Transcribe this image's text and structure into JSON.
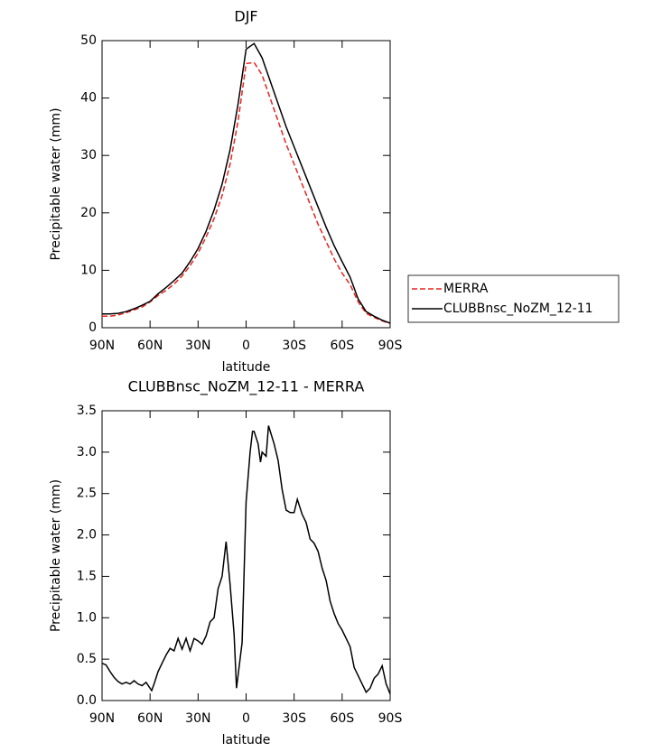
{
  "chart_data": [
    {
      "type": "line",
      "title": "DJF",
      "x_label": "latitude",
      "y_label": "Precipitable water (mm)",
      "x": [
        90,
        85,
        80,
        75,
        70,
        65,
        60,
        55,
        50,
        45,
        40,
        35,
        30,
        25,
        20,
        15,
        10,
        5,
        0,
        -5,
        -10,
        -15,
        -20,
        -25,
        -30,
        -35,
        -40,
        -45,
        -50,
        -55,
        -60,
        -65,
        -70,
        -75,
        -80,
        -85,
        -90
      ],
      "series": [
        {
          "name": "MERRA",
          "color": "#e8231e",
          "dashed": true,
          "values": [
            2.0,
            2.0,
            2.2,
            2.6,
            3.1,
            3.6,
            4.5,
            5.6,
            6.5,
            7.6,
            9.0,
            10.8,
            13.0,
            15.8,
            19.0,
            23.0,
            28.5,
            36,
            46,
            46.2,
            44,
            40,
            36,
            32,
            28.5,
            25,
            21.5,
            18,
            15,
            12,
            9.5,
            7.5,
            4.5,
            2.5,
            1.8,
            1.2,
            0.7
          ]
        },
        {
          "name": "CLUBBnsc_NoZM_12-11",
          "color": "#000000",
          "dashed": false,
          "values": [
            2.4,
            2.4,
            2.5,
            2.8,
            3.3,
            3.9,
            4.6,
            5.9,
            7.0,
            8.2,
            9.5,
            11.5,
            13.8,
            16.8,
            20.5,
            25,
            31,
            39,
            48.5,
            49.5,
            47,
            43,
            39,
            35,
            31.5,
            28,
            24.5,
            21,
            17.5,
            14.3,
            11.5,
            8.8,
            5,
            2.8,
            2.0,
            1.3,
            0.8
          ]
        }
      ],
      "xlim": [
        90,
        -90
      ],
      "xticks": [
        {
          "value": 90,
          "label": "90N"
        },
        {
          "value": 60,
          "label": "60N"
        },
        {
          "value": 30,
          "label": "30N"
        },
        0,
        {
          "value": -30,
          "label": "30S"
        },
        {
          "value": -60,
          "label": "60S"
        },
        {
          "value": -90,
          "label": "90S"
        }
      ],
      "ylim": [
        0,
        50
      ],
      "yticks": [
        0,
        10,
        20,
        30,
        40,
        50
      ],
      "legend": "right"
    },
    {
      "type": "line",
      "title": "CLUBBnsc_NoZM_12-11 - MERRA",
      "x_label": "latitude",
      "y_label": "Precipitable water (mm)",
      "x": [
        90,
        87.5,
        85,
        82.5,
        80,
        77.5,
        75,
        72.5,
        70,
        67.5,
        65,
        62.5,
        59,
        57.5,
        55,
        52.5,
        50,
        47.5,
        45,
        42.5,
        40,
        37.5,
        35,
        32.5,
        30,
        27.5,
        25,
        22.5,
        20,
        17.5,
        15,
        12.5,
        10,
        7.5,
        6,
        2.5,
        0,
        -2.5,
        -4,
        -5,
        -7.5,
        -9,
        -10,
        -12.5,
        -14,
        -17.5,
        -20,
        -22.5,
        -25,
        -27.5,
        -30,
        -32,
        -35,
        -37.5,
        -40,
        -42.5,
        -45,
        -47.5,
        -50,
        -52.5,
        -55,
        -57.5,
        -60,
        -62.5,
        -65,
        -67.5,
        -70,
        -72.5,
        -75,
        -77.5,
        -80,
        -82.5,
        -85,
        -87.5,
        -90
      ],
      "series": [
        {
          "name": "CLUBBnsc_NoZM_12-11 - MERRA",
          "color": "#000000",
          "dashed": false,
          "values": [
            0.45,
            0.43,
            0.35,
            0.28,
            0.23,
            0.2,
            0.22,
            0.2,
            0.24,
            0.2,
            0.18,
            0.22,
            0.12,
            0.2,
            0.35,
            0.45,
            0.55,
            0.63,
            0.6,
            0.75,
            0.62,
            0.75,
            0.6,
            0.75,
            0.72,
            0.68,
            0.78,
            0.95,
            1.0,
            1.35,
            1.5,
            1.92,
            1.4,
            0.8,
            0.15,
            0.7,
            2.4,
            3.0,
            3.25,
            3.25,
            3.1,
            2.88,
            3.0,
            2.95,
            3.32,
            3.1,
            2.9,
            2.55,
            2.3,
            2.27,
            2.27,
            2.43,
            2.25,
            2.15,
            1.95,
            1.9,
            1.8,
            1.6,
            1.45,
            1.2,
            1.05,
            0.93,
            0.85,
            0.75,
            0.65,
            0.4,
            0.3,
            0.2,
            0.1,
            0.15,
            0.27,
            0.32,
            0.42,
            0.2,
            0.08
          ]
        }
      ],
      "xlim": [
        90,
        -90
      ],
      "xticks": [
        {
          "value": 90,
          "label": "90N"
        },
        {
          "value": 60,
          "label": "60N"
        },
        {
          "value": 30,
          "label": "30N"
        },
        0,
        {
          "value": -30,
          "label": "30S"
        },
        {
          "value": -60,
          "label": "60S"
        },
        {
          "value": -90,
          "label": "90S"
        }
      ],
      "ylim": [
        0,
        3.5
      ],
      "yticks": [
        {
          "value": 0,
          "label": "0.0"
        },
        0.5,
        {
          "value": 1,
          "label": "1.0"
        },
        1.5,
        {
          "value": 2,
          "label": "2.0"
        },
        2.5,
        {
          "value": 3,
          "label": "3.0"
        },
        3.5
      ]
    }
  ]
}
